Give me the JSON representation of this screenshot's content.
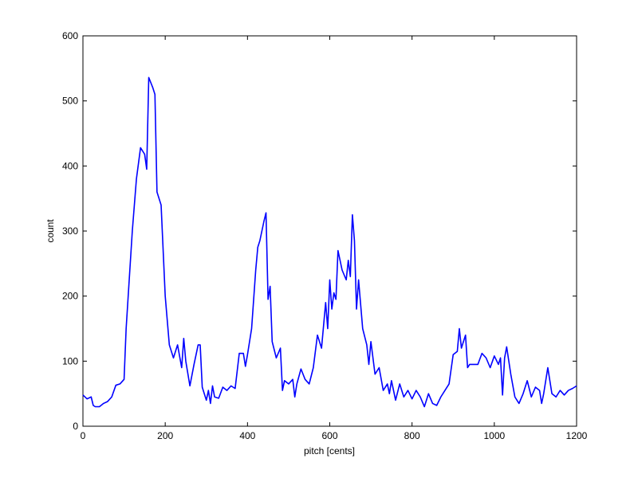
{
  "chart_data": {
    "type": "line",
    "xlabel": "pitch [cents]",
    "ylabel": "count",
    "color": "#0000ff",
    "x": [
      0,
      10,
      20,
      25,
      30,
      40,
      50,
      60,
      70,
      80,
      90,
      100,
      105,
      110,
      120,
      130,
      140,
      150,
      155,
      160,
      170,
      175,
      180,
      190,
      200,
      210,
      220,
      230,
      240,
      245,
      250,
      260,
      270,
      280,
      285,
      290,
      300,
      305,
      310,
      315,
      320,
      330,
      340,
      350,
      360,
      370,
      380,
      390,
      395,
      400,
      410,
      420,
      425,
      430,
      440,
      445,
      450,
      455,
      460,
      470,
      480,
      485,
      490,
      500,
      510,
      515,
      520,
      530,
      540,
      550,
      560,
      570,
      580,
      590,
      595,
      600,
      605,
      610,
      615,
      620,
      630,
      640,
      645,
      650,
      655,
      660,
      665,
      670,
      680,
      690,
      695,
      700,
      710,
      720,
      730,
      740,
      745,
      750,
      760,
      770,
      780,
      790,
      800,
      810,
      820,
      830,
      840,
      850,
      860,
      870,
      880,
      890,
      900,
      910,
      915,
      920,
      930,
      935,
      940,
      950,
      960,
      970,
      980,
      990,
      1000,
      1010,
      1015,
      1020,
      1025,
      1030,
      1040,
      1050,
      1060,
      1070,
      1080,
      1090,
      1100,
      1110,
      1115,
      1120,
      1130,
      1140,
      1150,
      1160,
      1170,
      1180,
      1190,
      1200
    ],
    "values": [
      48,
      42,
      45,
      32,
      30,
      30,
      35,
      38,
      45,
      63,
      65,
      72,
      150,
      200,
      300,
      380,
      428,
      418,
      395,
      536,
      520,
      510,
      360,
      340,
      200,
      125,
      105,
      125,
      90,
      135,
      100,
      62,
      95,
      125,
      125,
      60,
      40,
      55,
      35,
      62,
      45,
      43,
      60,
      55,
      62,
      58,
      112,
      112,
      92,
      110,
      150,
      240,
      275,
      285,
      315,
      328,
      195,
      215,
      130,
      105,
      120,
      55,
      70,
      65,
      72,
      45,
      65,
      88,
      72,
      65,
      90,
      140,
      120,
      190,
      150,
      225,
      180,
      205,
      195,
      270,
      240,
      225,
      255,
      230,
      325,
      285,
      180,
      225,
      150,
      125,
      95,
      130,
      80,
      90,
      55,
      65,
      50,
      70,
      40,
      65,
      45,
      55,
      42,
      55,
      45,
      30,
      50,
      35,
      32,
      45,
      55,
      65,
      110,
      115,
      150,
      120,
      140,
      90,
      95,
      95,
      95,
      112,
      105,
      90,
      108,
      95,
      105,
      48,
      105,
      122,
      80,
      45,
      35,
      50,
      70,
      45,
      60,
      55,
      35,
      50,
      90,
      50,
      45,
      55,
      48,
      55,
      58,
      62
    ],
    "xlim": [
      0,
      1200
    ],
    "xticks": [
      0,
      200,
      400,
      600,
      800,
      1000,
      1200
    ],
    "ylim": [
      0,
      600
    ],
    "yticks": [
      0,
      100,
      200,
      300,
      400,
      500,
      600
    ]
  }
}
